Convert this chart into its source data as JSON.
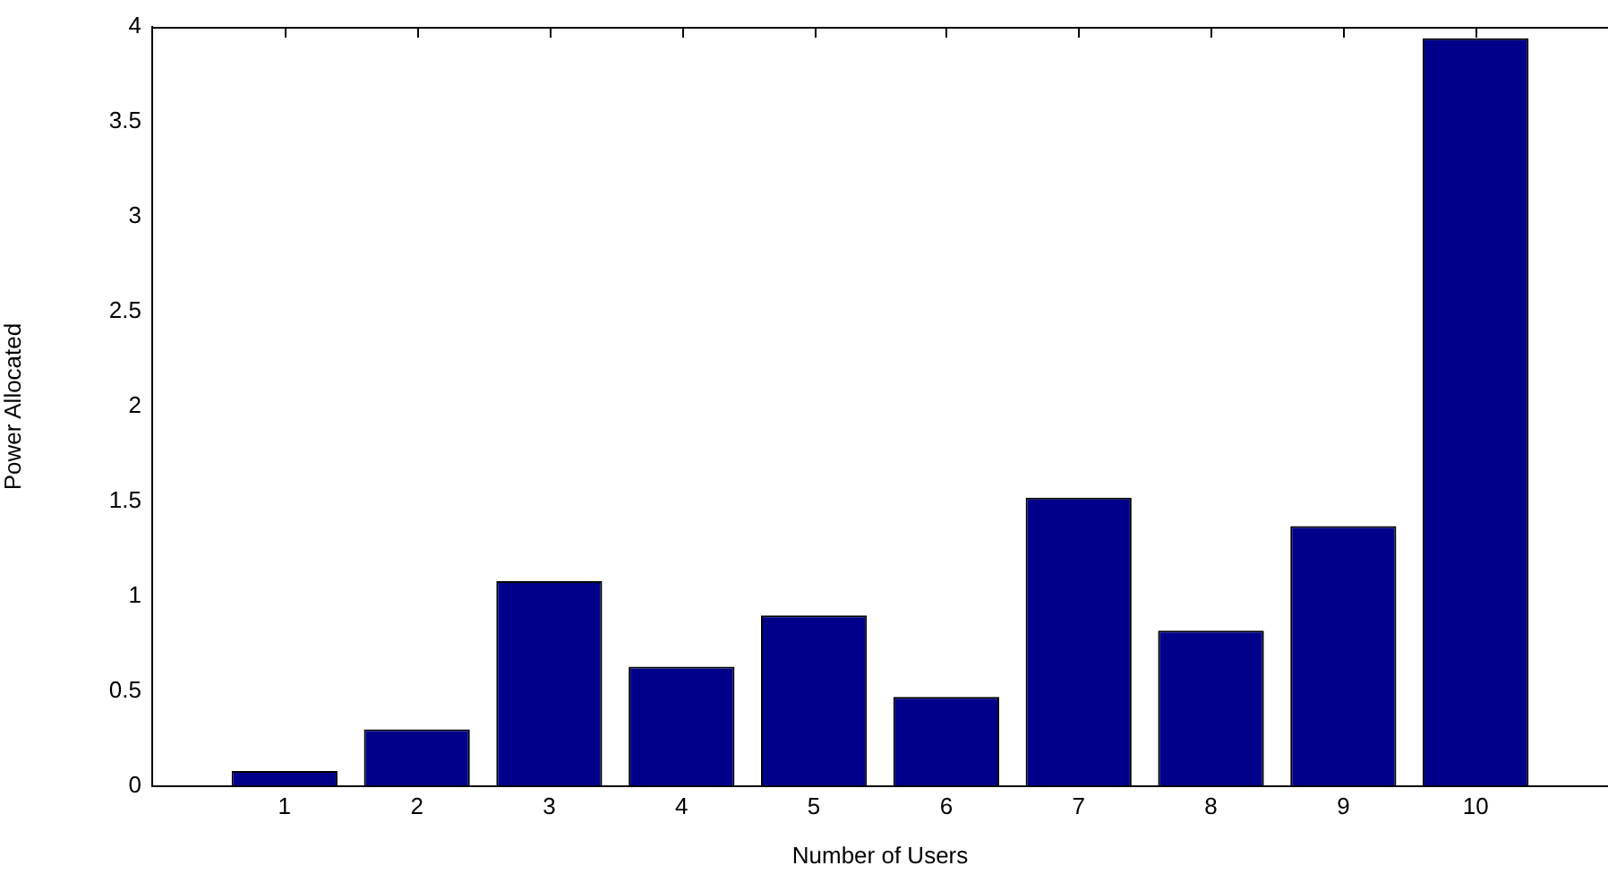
{
  "chart_data": {
    "type": "bar",
    "xlabel": "Number of Users",
    "ylabel": "Power Allocated",
    "x": [
      1,
      2,
      3,
      4,
      5,
      6,
      7,
      8,
      9,
      10
    ],
    "values": [
      0.08,
      0.3,
      1.08,
      0.63,
      0.9,
      0.47,
      1.52,
      0.82,
      1.37,
      3.94
    ],
    "color": "#00008b",
    "xlim": [
      0,
      11
    ],
    "xticks": [
      1,
      2,
      3,
      4,
      5,
      6,
      7,
      8,
      9,
      10
    ],
    "ylim": [
      0,
      4
    ],
    "yticks": [
      0,
      0.5,
      1,
      1.5,
      2,
      2.5,
      3,
      3.5,
      4
    ],
    "grid": false,
    "legend": false
  }
}
